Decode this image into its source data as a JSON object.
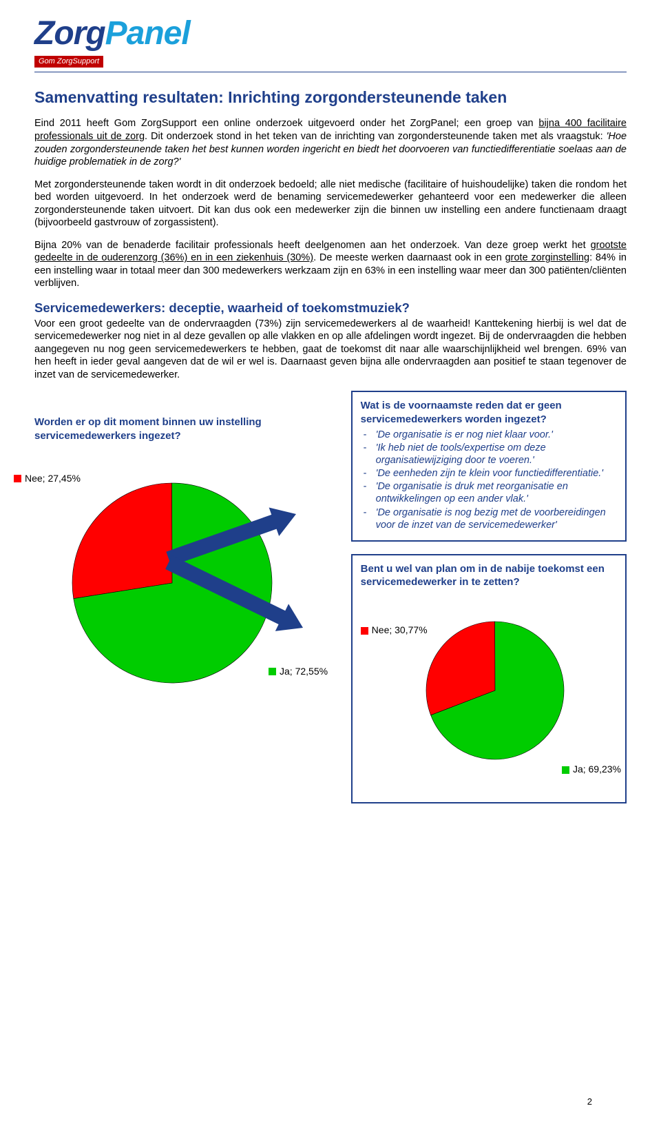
{
  "logo": {
    "part1": "Zorg",
    "part2": "Panel",
    "subline": "Gom ZorgSupport"
  },
  "title": "Samenvatting resultaten: Inrichting zorgondersteunende taken",
  "paragraphs": {
    "p1a": "Eind 2011 heeft Gom ZorgSupport een online onderzoek uitgevoerd onder het ZorgPanel; een groep van ",
    "p1u1": "bijna 400 facilitaire professionals uit de zorg",
    "p1b": ". Dit onderzoek stond in het teken van de inrichting van zorgondersteunende taken met als vraagstuk: ",
    "p1i": "'Hoe zouden zorgondersteunende taken het best kunnen worden ingericht en biedt het doorvoeren van functiedifferentiatie soelaas aan de huidige problematiek in de zorg?'",
    "p2": "Met zorgondersteunende taken wordt in dit onderzoek bedoeld; alle niet medische (facilitaire of huishoudelijke) taken die rondom het bed worden uitgevoerd. In het onderzoek werd de benaming servicemedewerker gehanteerd voor een medewerker die alleen zorgondersteunende taken uitvoert. Dit kan dus ook een medewerker zijn die binnen uw instelling een andere functienaam draagt (bijvoorbeeld gastvrouw of zorgassistent).",
    "p3a": "Bijna 20% van de benaderde facilitair professionals heeft deelgenomen aan het onderzoek. Van deze groep werkt het ",
    "p3u1": "grootste gedeelte in de ouderenzorg (36%) en in een ziekenhuis (30%)",
    "p3b": ". De meeste werken daarnaast ook in een ",
    "p3u2": "grote zorginstelling",
    "p3c": ": 84% in een instelling waar in totaal meer dan 300 medewerkers werkzaam zijn en 63% in een instelling waar meer dan 300 patiënten/cliënten verblijven."
  },
  "subhead": "Servicemedewerkers: deceptie, waarheid of toekomstmuziek?",
  "p4": "Voor een groot gedeelte van de ondervraagden (73%) zijn servicemedewerkers al de waarheid! Kanttekening hierbij is wel dat de servicemedewerker nog niet in al deze gevallen op alle vlakken en op alle afdelingen wordt ingezet. Bij de ondervraagden die hebben aangegeven nu nog geen servicemedewerkers te hebben, gaat de toekomst dit naar alle waarschijnlijkheid wel brengen. 69% van hen heeft in ieder geval aangeven dat de wil er wel is. Daarnaast geven bijna alle ondervraagden aan positief te staan tegenover de inzet van de servicemedewerker.",
  "chart1": {
    "type": "pie",
    "question": "Worden er op dit moment binnen uw instelling servicemedewerkers ingezet?",
    "slices": [
      {
        "label": "Nee; 27,45%",
        "value": 27.45,
        "color": "#ff0000"
      },
      {
        "label": "Ja; 72,55%",
        "value": 72.55,
        "color": "#00cc00"
      }
    ],
    "radius": 145,
    "arrow_color": "#1f3f8a"
  },
  "box1": {
    "question": "Wat is de voornaamste reden dat er geen servicemedewerkers worden ingezet?",
    "reasons": [
      "'De organisatie is er nog niet klaar voor.'",
      "'Ik heb niet de tools/expertise om deze organisatiewijziging door te voeren.'",
      "'De eenheden zijn te klein voor functiedifferentiatie.'",
      "'De organisatie is druk met reorganisatie en ontwikkelingen op een ander vlak.'",
      "'De organisatie is nog bezig met de voorbereidingen voor de inzet van de servicemedewerker'"
    ]
  },
  "box2": {
    "question": "Bent u wel van plan om in de nabije toekomst een servicemedewerker in te zetten?",
    "chart": {
      "type": "pie",
      "slices": [
        {
          "label": "Nee; 30,77%",
          "value": 30.77,
          "color": "#ff0000"
        },
        {
          "label": "Ja; 69,23%",
          "value": 69.23,
          "color": "#00cc00"
        }
      ],
      "radius": 100
    }
  },
  "page_number": "2"
}
